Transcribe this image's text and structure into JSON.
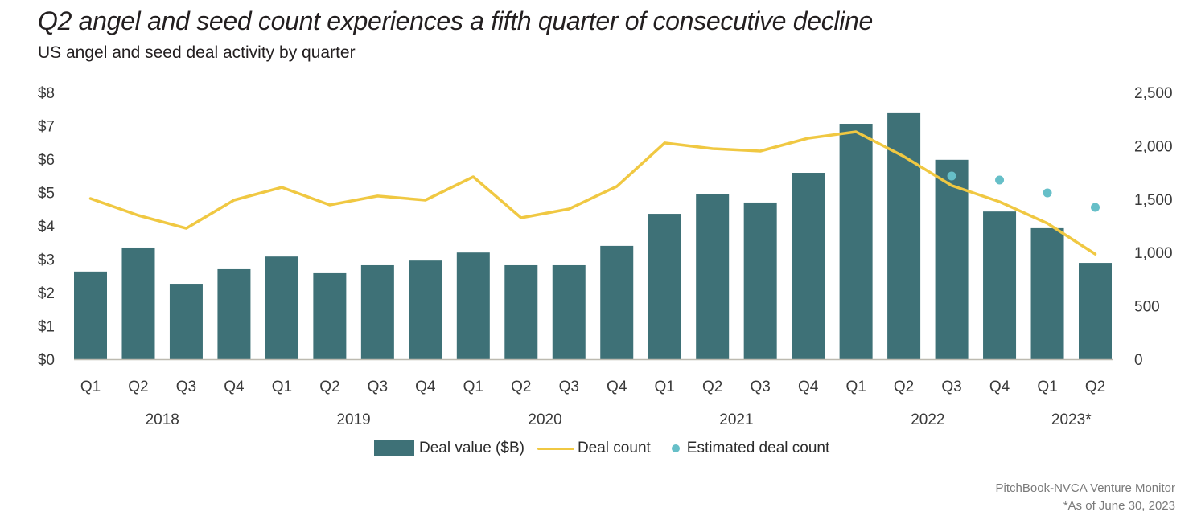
{
  "header": {
    "title": "Q2 angel and seed count experiences a fifth quarter of consecutive decline",
    "subtitle": "US angel and seed deal activity by quarter"
  },
  "colors": {
    "bar": "#3e7177",
    "line": "#f0c842",
    "dot": "#66bfc8",
    "baseline": "#bdbab0"
  },
  "legend": {
    "items": [
      {
        "label": "Deal value ($B)",
        "type": "bar"
      },
      {
        "label": "Deal count",
        "type": "line"
      },
      {
        "label": "Estimated deal count",
        "type": "dot"
      }
    ]
  },
  "footer": {
    "source": "PitchBook-NVCA Venture Monitor",
    "note": "*As of June 30, 2023"
  },
  "chart_data": {
    "type": "bar",
    "title": "Q2 angel and seed count experiences a fifth quarter of consecutive decline",
    "subtitle": "US angel and seed deal activity by quarter",
    "categories": [
      "Q1",
      "Q2",
      "Q3",
      "Q4",
      "Q1",
      "Q2",
      "Q3",
      "Q4",
      "Q1",
      "Q2",
      "Q3",
      "Q4",
      "Q1",
      "Q2",
      "Q3",
      "Q4",
      "Q1",
      "Q2",
      "Q3",
      "Q4",
      "Q1",
      "Q2"
    ],
    "year_groups": [
      {
        "label": "2018",
        "start": 0,
        "count": 4
      },
      {
        "label": "2019",
        "start": 4,
        "count": 4
      },
      {
        "label": "2020",
        "start": 8,
        "count": 4
      },
      {
        "label": "2021",
        "start": 12,
        "count": 4
      },
      {
        "label": "2022",
        "start": 16,
        "count": 4
      },
      {
        "label": "2023*",
        "start": 20,
        "count": 2
      }
    ],
    "series": [
      {
        "name": "Deal value ($B)",
        "type": "bar",
        "axis": "left",
        "values": [
          2.63,
          3.35,
          2.24,
          2.7,
          3.08,
          2.58,
          2.82,
          2.96,
          3.2,
          2.82,
          2.82,
          3.4,
          4.36,
          4.94,
          4.7,
          5.59,
          7.06,
          7.4,
          5.98,
          4.43,
          3.93,
          2.89
        ]
      },
      {
        "name": "Deal count",
        "type": "line",
        "axis": "right",
        "values": [
          1506,
          1348,
          1227,
          1491,
          1611,
          1446,
          1529,
          1491,
          1709,
          1325,
          1408,
          1619,
          2026,
          1973,
          1950,
          2071,
          2131,
          1900,
          1627,
          1476,
          1273,
          986
        ]
      },
      {
        "name": "Estimated deal count",
        "type": "scatter",
        "axis": "right",
        "values": [
          null,
          null,
          null,
          null,
          null,
          null,
          null,
          null,
          null,
          null,
          null,
          null,
          null,
          null,
          null,
          null,
          null,
          null,
          1717,
          1679,
          1559,
          1423
        ]
      }
    ],
    "y_left": {
      "label": "",
      "min": 0,
      "max": 8,
      "ticks": [
        0,
        1,
        2,
        3,
        4,
        5,
        6,
        7,
        8
      ],
      "tick_labels": [
        "$0",
        "$1",
        "$2",
        "$3",
        "$4",
        "$5",
        "$6",
        "$7",
        "$8"
      ]
    },
    "y_right": {
      "label": "",
      "min": 0,
      "max": 2500,
      "ticks": [
        0,
        500,
        1000,
        1500,
        2000,
        2500
      ],
      "tick_labels": [
        "0",
        "500",
        "1,000",
        "1,500",
        "2,000",
        "2,500"
      ]
    },
    "grid": false,
    "legend_position": "bottom"
  }
}
